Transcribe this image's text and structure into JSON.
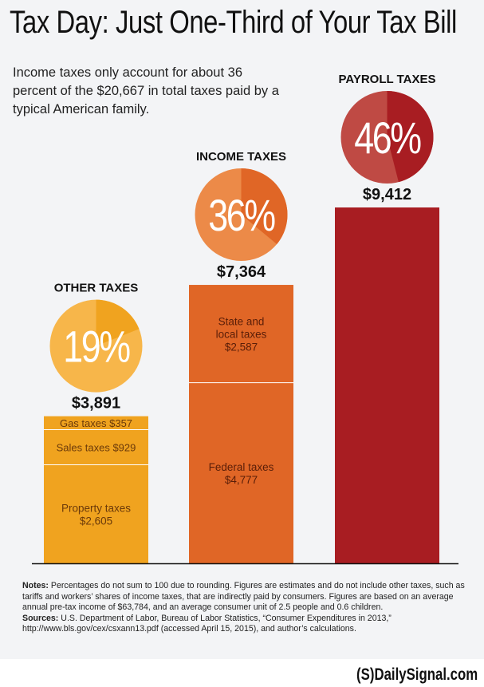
{
  "title": "Tax Day: Just One-Third of Your Tax Bill",
  "subtitle": "Income taxes only account for about 36 percent of the $20,667 in total taxes paid by a typical American family.",
  "notes": {
    "notes_label": "Notes:",
    "notes_text": " Percentages do not sum to 100 due to rounding. Figures are estimates and do not include other taxes, such as tariffs and workers’ shares of income taxes, that are indirectly paid by consumers. Figures are based on an average annual pre-tax income of $63,784, and an average consumer unit of 2.5 people and 0.6 children.",
    "sources_label": "Sources:",
    "sources_text": " U.S. Department of Labor, Bureau of Labor Statistics, “Consumer Expenditures in 2013,” http://www.bls.gov/cex/csxann13.pdf (accessed April 15, 2015), and author’s calculations."
  },
  "logo": "(S)DailySignal.com",
  "chart_data": {
    "type": "bar",
    "stacked": true,
    "categories": [
      "OTHER TAXES",
      "INCOME TAXES",
      "PAYROLL TAXES"
    ],
    "totals": [
      3891,
      7364,
      9412
    ],
    "total_labels": [
      "$3,891",
      "$7,364",
      "$9,412"
    ],
    "percents": [
      19,
      36,
      46
    ],
    "percent_labels": [
      "19%",
      "36%",
      "46%"
    ],
    "colors": [
      "#f0a31f",
      "#e06626",
      "#a81d22"
    ],
    "circle_light": [
      "#f7b64a",
      "#ec8a48",
      "#bf4a44"
    ],
    "segments": [
      [
        {
          "label": "Property taxes",
          "value_label": "$2,605",
          "value": 2605
        },
        {
          "label": "Sales taxes",
          "value_label": "$929",
          "value": 929,
          "inline": true
        },
        {
          "label": "Gas taxes",
          "value_label": "$357",
          "value": 357,
          "inline": true
        }
      ],
      [
        {
          "label": "Federal taxes",
          "value_label": "$4,777",
          "value": 4777
        },
        {
          "label": "State and local taxes",
          "value_label": "$2,587",
          "value": 2587
        }
      ],
      [
        {
          "label": "",
          "value_label": "",
          "value": 9412
        }
      ]
    ]
  }
}
